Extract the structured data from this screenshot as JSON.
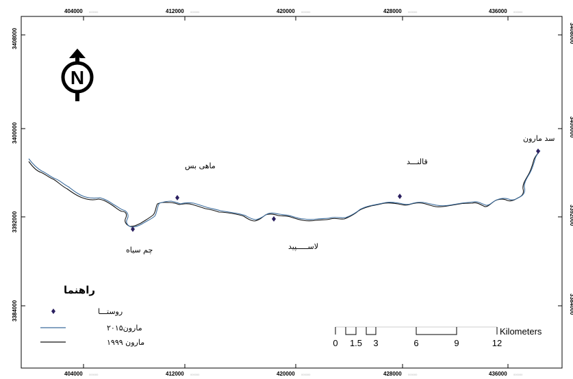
{
  "map": {
    "x_ticks": [
      {
        "label": "404000",
        "suffix": "000000"
      },
      {
        "label": "412000",
        "suffix": "000000"
      },
      {
        "label": "420000",
        "suffix": "000000"
      },
      {
        "label": "428000",
        "suffix": "000000"
      },
      {
        "label": "436000",
        "suffix": "000000"
      }
    ],
    "y_ticks": [
      {
        "label": "3408000"
      },
      {
        "label": "3400000"
      },
      {
        "label": "3392000"
      },
      {
        "label": "3384000"
      }
    ],
    "places": [
      {
        "name": "ماهی بس"
      },
      {
        "name": "قالنـــد"
      },
      {
        "name": "سد مارون"
      },
      {
        "name": "چم سیاه"
      },
      {
        "name": "لاســـــپید"
      }
    ],
    "north_arrow": {
      "letter": "N",
      "icon": "north-arrow-icon"
    },
    "colors": {
      "river_2015": "#3a6b9c",
      "river_1999": "#111111",
      "village": "#2b2060"
    }
  },
  "legend": {
    "title": "راهنما",
    "items": [
      {
        "label": "روستـــا"
      },
      {
        "label": "مارون۲۰۱۵"
      },
      {
        "label": "مارون ۱۹۹۹"
      }
    ]
  },
  "scale_bar": {
    "unit": "Kilometers",
    "ticks": [
      "0",
      "1.5",
      "3",
      "6",
      "9",
      "12"
    ]
  }
}
